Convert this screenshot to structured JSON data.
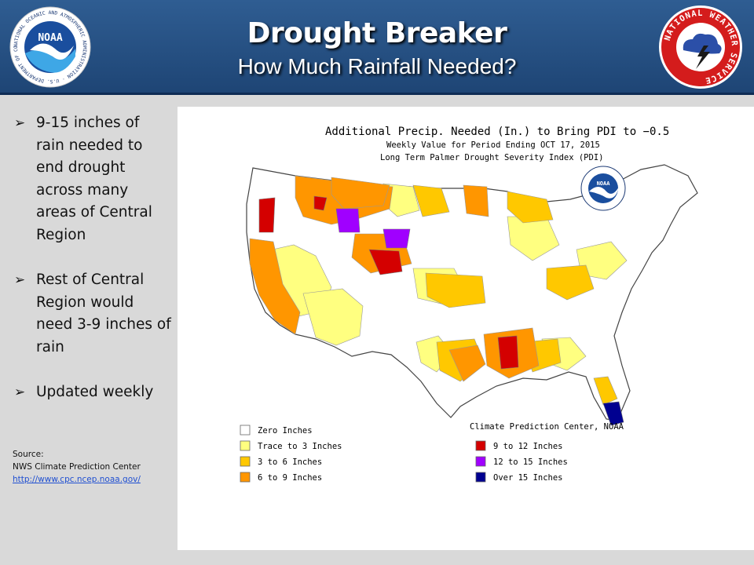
{
  "header": {
    "title": "Drought Breaker",
    "subtitle": "How Much Rainfall Needed?",
    "noaa_logo_text": "NOAA",
    "noaa_ring_text": "NATIONAL OCEANIC AND ATMOSPHERIC ADMINISTRATION · U.S. DEPARTMENT OF COMMERCE",
    "nws_ring_text": "NATIONAL WEATHER SERVICE"
  },
  "bullets": [
    {
      "icon": "arrow-bullet-icon",
      "text": "9-15 inches of rain needed to end drought across many areas of Central Region"
    },
    {
      "icon": "arrow-bullet-icon",
      "text": "Rest of Central Region would need 3-9 inches of rain"
    },
    {
      "icon": "arrow-bullet-icon",
      "text": "Updated weekly"
    }
  ],
  "source": {
    "label": "Source:",
    "org": "NWS Climate Prediction Center",
    "url": "http://www.cpc.ncep.noaa.gov/"
  },
  "map": {
    "title_line1": "Additional Precip. Needed (In.) to Bring PDI to −0.5",
    "title_line2": "Weekly Value for Period Ending OCT 17, 2015",
    "title_line3": "Long Term Palmer Drought Severity Index (PDI)",
    "credit": "Climate Prediction Center, NOAA",
    "noaa_logo_text": "NOAA",
    "legend": [
      {
        "label": "Zero Inches",
        "color": "#ffffff"
      },
      {
        "label": "Trace to 3 Inches",
        "color": "#ffff80"
      },
      {
        "label": "3 to 6 Inches",
        "color": "#ffc800"
      },
      {
        "label": "6 to 9 Inches",
        "color": "#ff9600"
      },
      {
        "label": "9 to 12 Inches",
        "color": "#d40000"
      },
      {
        "label": "12 to 15 Inches",
        "color": "#a000ff"
      },
      {
        "label": "Over 15 Inches",
        "color": "#000090"
      }
    ]
  }
}
